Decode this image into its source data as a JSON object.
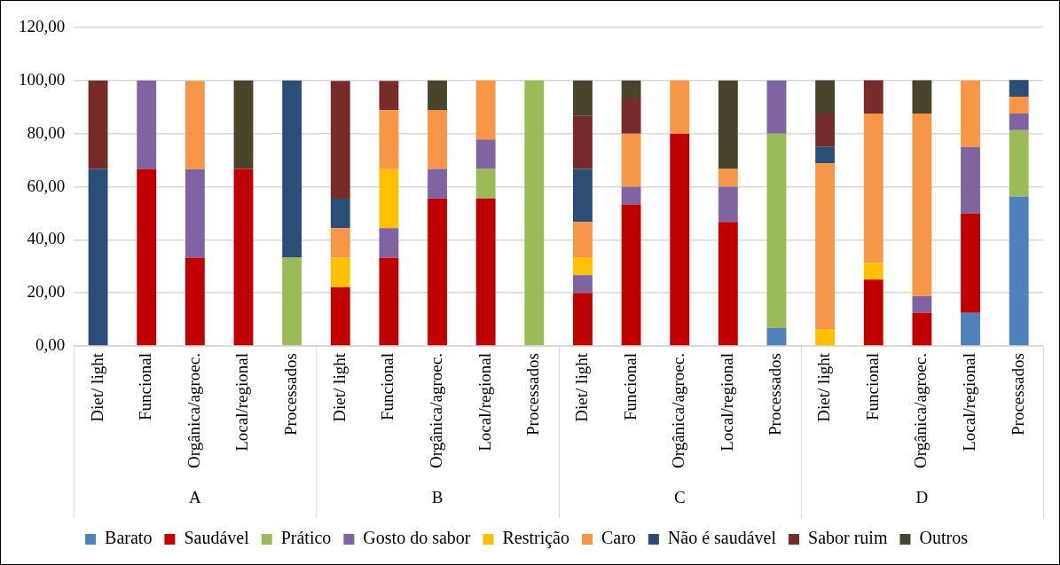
{
  "chart_data": {
    "type": "bar",
    "stacked": true,
    "grid": "y",
    "legend": "bottom",
    "categories": [
      "Diet/ light",
      "Funcional",
      "Orgânica/agroec.",
      "Local/regional",
      "Processados",
      "Diet/ light",
      "Funcional",
      "Orgânica/agroec.",
      "Local/regional",
      "Processados",
      "Diet/ light",
      "Funcional",
      "Orgânica/agroec.",
      "Local/regional",
      "Processados",
      "Diet/ light",
      "Funcional",
      "Orgânica/agroec.",
      "Local/regional",
      "Processados"
    ],
    "annotations": [
      "A",
      "B",
      "C",
      "D"
    ],
    "ylim": [
      0,
      120
    ],
    "yticks": [
      {
        "value": 0,
        "label": "0,00"
      },
      {
        "value": 20,
        "label": "20,00"
      },
      {
        "value": 40,
        "label": "40,00"
      },
      {
        "value": 60,
        "label": "60,00"
      },
      {
        "value": 80,
        "label": "80,00"
      },
      {
        "value": 100,
        "label": "100,00"
      },
      {
        "value": 120,
        "label": "120,00"
      }
    ],
    "series": [
      {
        "name": "Barato",
        "color": "#4f81bd",
        "values": [
          null,
          null,
          null,
          null,
          null,
          null,
          null,
          null,
          null,
          null,
          null,
          null,
          null,
          null,
          6.7,
          null,
          null,
          null,
          12.5,
          56.3
        ]
      },
      {
        "name": "Saudável",
        "color": "#c00000",
        "values": [
          null,
          66.7,
          33.3,
          66.7,
          null,
          22.2,
          33.3,
          55.6,
          55.6,
          null,
          20,
          53.3,
          80,
          46.7,
          null,
          null,
          25,
          12.5,
          37.5,
          null
        ]
      },
      {
        "name": "Prático",
        "color": "#9bbb59",
        "values": [
          null,
          null,
          null,
          null,
          33.3,
          null,
          null,
          null,
          11.1,
          100,
          null,
          null,
          null,
          null,
          73.3,
          null,
          null,
          null,
          null,
          25
        ]
      },
      {
        "name": "Gosto do sabor",
        "color": "#8064a2",
        "values": [
          null,
          33.3,
          33.3,
          null,
          null,
          null,
          11.1,
          11.1,
          11.1,
          null,
          6.7,
          6.7,
          null,
          13.3,
          20,
          null,
          null,
          6.3,
          25,
          6.3
        ]
      },
      {
        "name": "Restrição",
        "color": "#ffc000",
        "values": [
          null,
          null,
          null,
          null,
          null,
          11.1,
          22.2,
          null,
          null,
          null,
          6.7,
          null,
          null,
          null,
          null,
          6.3,
          6.3,
          null,
          null,
          null
        ]
      },
      {
        "name": "Caro",
        "color": "#f79646",
        "values": [
          null,
          null,
          33.3,
          null,
          null,
          11.1,
          22.2,
          22.2,
          22.2,
          null,
          13.3,
          20,
          20,
          6.7,
          null,
          62.5,
          56.3,
          68.8,
          25,
          6.3
        ]
      },
      {
        "name": "Não é saudável",
        "color": "#2c4d75",
        "values": [
          66.7,
          null,
          null,
          null,
          66.7,
          11.1,
          null,
          null,
          null,
          null,
          20,
          null,
          null,
          null,
          null,
          6.3,
          null,
          null,
          null,
          6.3
        ]
      },
      {
        "name": "Sabor ruim",
        "color": "#772c2a",
        "values": [
          33.3,
          null,
          null,
          null,
          null,
          44.4,
          11.1,
          null,
          null,
          null,
          20,
          13.3,
          null,
          null,
          null,
          12.5,
          12.5,
          null,
          null,
          null
        ]
      },
      {
        "name": "Outros",
        "color": "#4a452a",
        "values": [
          null,
          null,
          null,
          33.3,
          null,
          null,
          null,
          11.1,
          null,
          null,
          13.3,
          6.7,
          null,
          33.3,
          null,
          12.5,
          null,
          12.5,
          null,
          null
        ]
      }
    ]
  }
}
